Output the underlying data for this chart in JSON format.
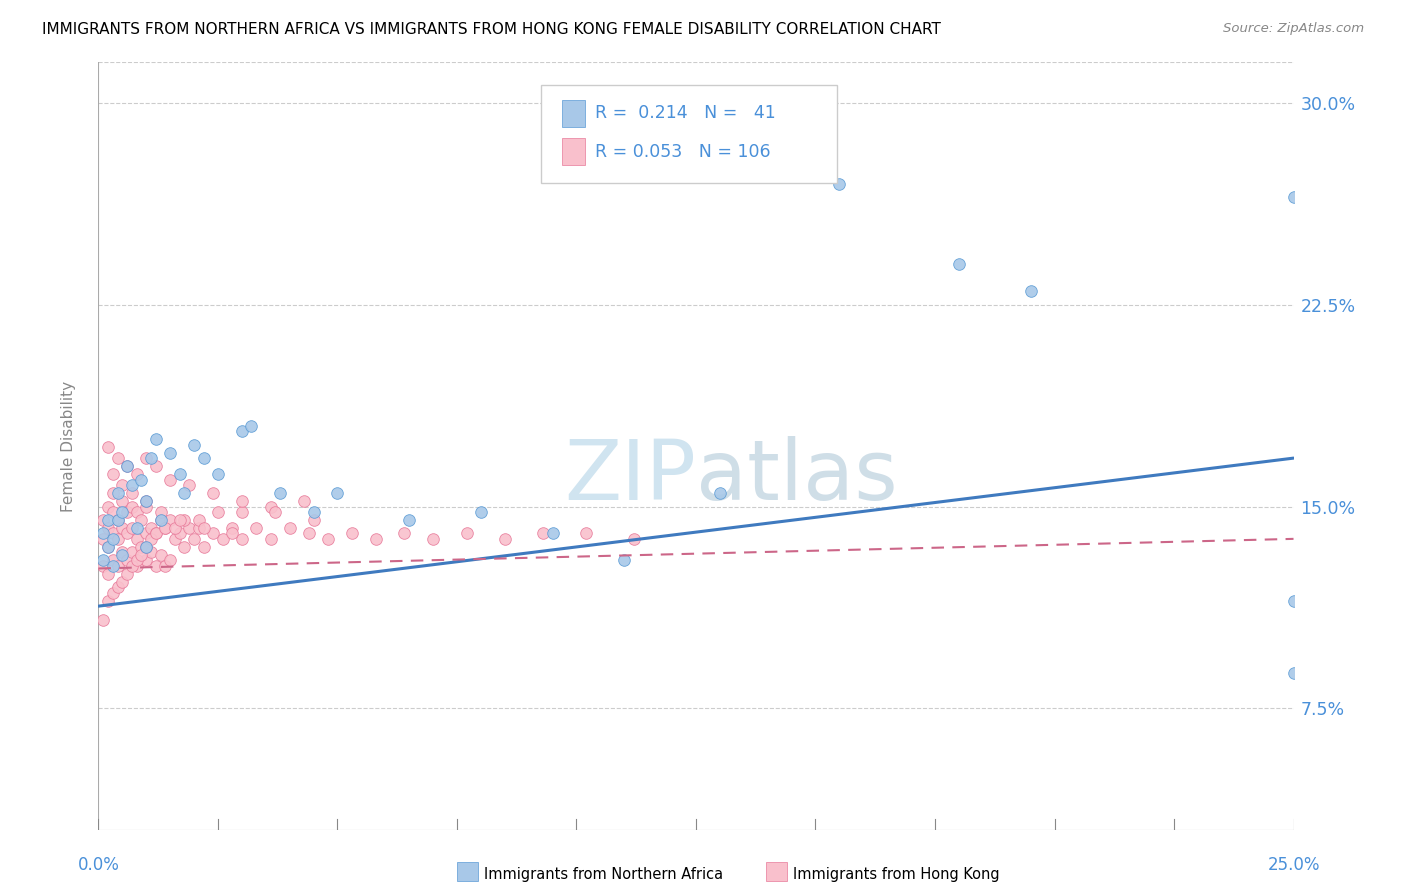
{
  "title": "IMMIGRANTS FROM NORTHERN AFRICA VS IMMIGRANTS FROM HONG KONG FEMALE DISABILITY CORRELATION CHART",
  "source": "Source: ZipAtlas.com",
  "ylabel": "Female Disability",
  "y_tick_labels": [
    "7.5%",
    "15.0%",
    "22.5%",
    "30.0%"
  ],
  "y_tick_values": [
    0.075,
    0.15,
    0.225,
    0.3
  ],
  "x_lim": [
    0.0,
    0.25
  ],
  "y_lim": [
    0.03,
    0.315
  ],
  "color_blue_fill": "#a8c8e8",
  "color_blue_edge": "#5b9bd5",
  "color_pink_fill": "#f9c0cc",
  "color_pink_edge": "#e87a9a",
  "color_trend_blue": "#3f7abf",
  "color_trend_pink": "#cc6688",
  "color_axis_labels": "#4a90d9",
  "watermark_color": "#d0e4f0",
  "series1_name": "Immigrants from Northern Africa",
  "series2_name": "Immigrants from Hong Kong",
  "trend_blue_x0": 0.0,
  "trend_blue_y0": 0.113,
  "trend_blue_x1": 0.25,
  "trend_blue_y1": 0.168,
  "trend_pink_x0": 0.0,
  "trend_pink_y0": 0.127,
  "trend_pink_x1": 0.25,
  "trend_pink_y1": 0.138,
  "na_x": [
    0.001,
    0.001,
    0.002,
    0.002,
    0.003,
    0.003,
    0.004,
    0.004,
    0.005,
    0.005,
    0.006,
    0.007,
    0.008,
    0.009,
    0.01,
    0.01,
    0.011,
    0.012,
    0.013,
    0.015,
    0.017,
    0.018,
    0.02,
    0.022,
    0.025,
    0.03,
    0.032,
    0.038,
    0.045,
    0.05,
    0.065,
    0.08,
    0.095,
    0.11,
    0.13,
    0.155,
    0.18,
    0.195,
    0.33,
    0.36,
    0.49
  ],
  "na_y": [
    0.13,
    0.14,
    0.135,
    0.145,
    0.128,
    0.138,
    0.145,
    0.155,
    0.132,
    0.148,
    0.165,
    0.158,
    0.142,
    0.16,
    0.135,
    0.152,
    0.168,
    0.175,
    0.145,
    0.17,
    0.162,
    0.155,
    0.173,
    0.168,
    0.162,
    0.178,
    0.18,
    0.155,
    0.148,
    0.155,
    0.145,
    0.148,
    0.14,
    0.13,
    0.155,
    0.27,
    0.24,
    0.23,
    0.115,
    0.088,
    0.265
  ],
  "hk_x": [
    0.001,
    0.001,
    0.001,
    0.002,
    0.002,
    0.002,
    0.002,
    0.003,
    0.003,
    0.003,
    0.003,
    0.004,
    0.004,
    0.004,
    0.005,
    0.005,
    0.005,
    0.006,
    0.006,
    0.006,
    0.007,
    0.007,
    0.007,
    0.008,
    0.008,
    0.008,
    0.009,
    0.009,
    0.01,
    0.01,
    0.01,
    0.011,
    0.011,
    0.012,
    0.012,
    0.013,
    0.013,
    0.014,
    0.014,
    0.015,
    0.015,
    0.016,
    0.017,
    0.018,
    0.019,
    0.02,
    0.021,
    0.022,
    0.024,
    0.026,
    0.028,
    0.03,
    0.033,
    0.036,
    0.04,
    0.044,
    0.048,
    0.053,
    0.058,
    0.064,
    0.07,
    0.077,
    0.085,
    0.093,
    0.102,
    0.112,
    0.001,
    0.002,
    0.003,
    0.004,
    0.005,
    0.006,
    0.007,
    0.008,
    0.009,
    0.01,
    0.011,
    0.012,
    0.014,
    0.016,
    0.018,
    0.021,
    0.025,
    0.03,
    0.036,
    0.043,
    0.003,
    0.005,
    0.007,
    0.01,
    0.013,
    0.017,
    0.022,
    0.028,
    0.002,
    0.004,
    0.006,
    0.008,
    0.01,
    0.012,
    0.015,
    0.019,
    0.024,
    0.03,
    0.037,
    0.045
  ],
  "hk_y": [
    0.128,
    0.138,
    0.145,
    0.125,
    0.135,
    0.142,
    0.15,
    0.13,
    0.14,
    0.148,
    0.155,
    0.128,
    0.138,
    0.145,
    0.133,
    0.142,
    0.152,
    0.13,
    0.14,
    0.148,
    0.133,
    0.142,
    0.15,
    0.128,
    0.138,
    0.148,
    0.135,
    0.145,
    0.13,
    0.14,
    0.15,
    0.133,
    0.142,
    0.128,
    0.14,
    0.132,
    0.145,
    0.128,
    0.142,
    0.13,
    0.145,
    0.138,
    0.14,
    0.135,
    0.142,
    0.138,
    0.142,
    0.135,
    0.14,
    0.138,
    0.142,
    0.138,
    0.142,
    0.138,
    0.142,
    0.14,
    0.138,
    0.14,
    0.138,
    0.14,
    0.138,
    0.14,
    0.138,
    0.14,
    0.14,
    0.138,
    0.108,
    0.115,
    0.118,
    0.12,
    0.122,
    0.125,
    0.128,
    0.13,
    0.132,
    0.135,
    0.138,
    0.14,
    0.142,
    0.142,
    0.145,
    0.145,
    0.148,
    0.148,
    0.15,
    0.152,
    0.162,
    0.158,
    0.155,
    0.152,
    0.148,
    0.145,
    0.142,
    0.14,
    0.172,
    0.168,
    0.165,
    0.162,
    0.168,
    0.165,
    0.16,
    0.158,
    0.155,
    0.152,
    0.148,
    0.145
  ]
}
